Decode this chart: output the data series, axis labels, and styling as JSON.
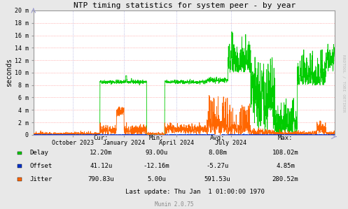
{
  "title": "NTP timing statistics for system peer - by year",
  "ylabel": "seconds",
  "background_color": "#e8e8e8",
  "plot_bg_color": "#ffffff",
  "grid_color_h": "#ff9999",
  "grid_color_v": "#aaaadd",
  "ytick_labels": [
    "0",
    "2 m",
    "4 m",
    "6 m",
    "8 m",
    "10 m",
    "12 m",
    "14 m",
    "16 m",
    "18 m",
    "20 m"
  ],
  "ytick_values": [
    0,
    0.002,
    0.004,
    0.006,
    0.008,
    0.01,
    0.012,
    0.014,
    0.016,
    0.018,
    0.02
  ],
  "ylim": [
    0,
    0.02
  ],
  "xtick_labels": [
    "October 2023",
    "January 2024",
    "April 2024",
    "July 2024"
  ],
  "xtick_pos": [
    0.13,
    0.3,
    0.475,
    0.655
  ],
  "delay_color": "#00cc00",
  "offset_color": "#0033cc",
  "jitter_color": "#ff6600",
  "watermark": "RRDTOOL / TOBI OETIKER",
  "munin_version": "Munin 2.0.75",
  "legend_items": [
    "Delay",
    "Offset",
    "Jitter"
  ],
  "stats_headers": [
    "Cur:",
    "Min:",
    "Avg:",
    "Max:"
  ],
  "delay_stats": [
    "12.20m",
    "93.00u",
    "8.08m",
    "108.02m"
  ],
  "offset_stats": [
    "41.12u",
    "-12.16m",
    "-5.27u",
    "4.85m"
  ],
  "jitter_stats": [
    "790.83u",
    "5.00u",
    "591.53u",
    "280.52m"
  ],
  "last_update": "Last update: Thu Jan  1 01:00:00 1970"
}
